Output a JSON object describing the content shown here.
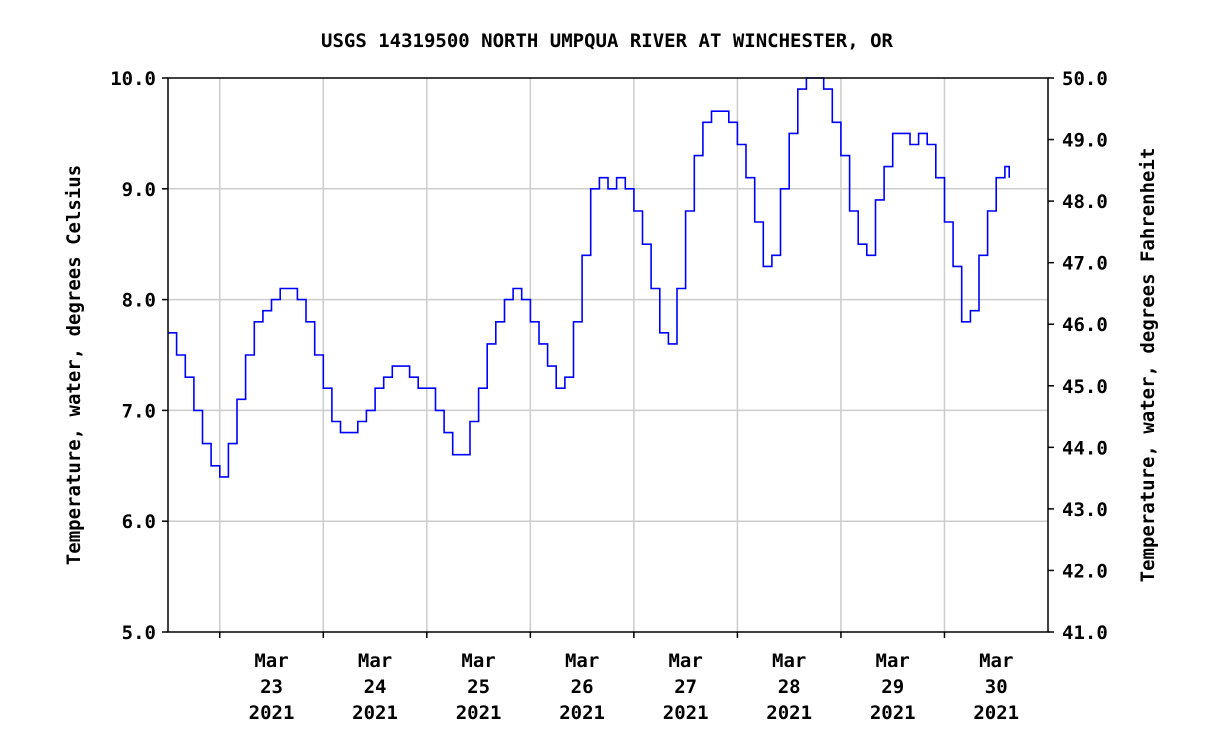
{
  "chart_data": {
    "type": "line",
    "title": "USGS 14319500 NORTH UMPQUA RIVER AT WINCHESTER, OR",
    "ylabel": "Temperature, water, degrees Celsius",
    "y2label": "Temperature, water, degrees Fahrenheit",
    "ylim": [
      5.0,
      10.0
    ],
    "y2lim": [
      41.0,
      50.0
    ],
    "yticks": [
      "10.0",
      "9.0",
      "8.0",
      "7.0",
      "6.0",
      "5.0"
    ],
    "y2ticks": [
      "50.0",
      "49.0",
      "48.0",
      "47.0",
      "46.0",
      "45.0",
      "44.0",
      "43.0",
      "42.0",
      "41.0"
    ],
    "xlim": [
      "2021-03-22T12:00",
      "2021-03-30T24:00"
    ],
    "xticks": [
      {
        "month": "Mar",
        "day": "23",
        "year": "2021"
      },
      {
        "month": "Mar",
        "day": "24",
        "year": "2021"
      },
      {
        "month": "Mar",
        "day": "25",
        "year": "2021"
      },
      {
        "month": "Mar",
        "day": "26",
        "year": "2021"
      },
      {
        "month": "Mar",
        "day": "27",
        "year": "2021"
      },
      {
        "month": "Mar",
        "day": "28",
        "year": "2021"
      },
      {
        "month": "Mar",
        "day": "29",
        "year": "2021"
      },
      {
        "month": "Mar",
        "day": "30",
        "year": "2021"
      }
    ],
    "grid": true,
    "line_color": "#0000ff",
    "series": [
      {
        "points": [
          [
            "2021-03-22T12:00",
            7.7
          ],
          [
            "2021-03-22T14:00",
            7.5
          ],
          [
            "2021-03-22T16:00",
            7.3
          ],
          [
            "2021-03-22T18:00",
            7.0
          ],
          [
            "2021-03-22T20:00",
            6.7
          ],
          [
            "2021-03-22T22:00",
            6.5
          ],
          [
            "2021-03-23T00:00",
            6.4
          ],
          [
            "2021-03-23T02:00",
            6.7
          ],
          [
            "2021-03-23T04:00",
            7.1
          ],
          [
            "2021-03-23T06:00",
            7.5
          ],
          [
            "2021-03-23T08:00",
            7.8
          ],
          [
            "2021-03-23T10:00",
            7.9
          ],
          [
            "2021-03-23T12:00",
            8.0
          ],
          [
            "2021-03-23T14:00",
            8.1
          ],
          [
            "2021-03-23T16:00",
            8.1
          ],
          [
            "2021-03-23T18:00",
            8.0
          ],
          [
            "2021-03-23T20:00",
            7.8
          ],
          [
            "2021-03-23T22:00",
            7.5
          ],
          [
            "2021-03-24T00:00",
            7.2
          ],
          [
            "2021-03-24T02:00",
            6.9
          ],
          [
            "2021-03-24T04:00",
            6.8
          ],
          [
            "2021-03-24T06:00",
            6.8
          ],
          [
            "2021-03-24T08:00",
            6.9
          ],
          [
            "2021-03-24T10:00",
            7.0
          ],
          [
            "2021-03-24T12:00",
            7.2
          ],
          [
            "2021-03-24T14:00",
            7.3
          ],
          [
            "2021-03-24T16:00",
            7.4
          ],
          [
            "2021-03-24T18:00",
            7.4
          ],
          [
            "2021-03-24T20:00",
            7.3
          ],
          [
            "2021-03-24T22:00",
            7.2
          ],
          [
            "2021-03-25T00:00",
            7.2
          ],
          [
            "2021-03-25T02:00",
            7.0
          ],
          [
            "2021-03-25T04:00",
            6.8
          ],
          [
            "2021-03-25T06:00",
            6.6
          ],
          [
            "2021-03-25T08:00",
            6.6
          ],
          [
            "2021-03-25T10:00",
            6.9
          ],
          [
            "2021-03-25T12:00",
            7.2
          ],
          [
            "2021-03-25T14:00",
            7.6
          ],
          [
            "2021-03-25T16:00",
            7.8
          ],
          [
            "2021-03-25T18:00",
            8.0
          ],
          [
            "2021-03-25T20:00",
            8.1
          ],
          [
            "2021-03-25T22:00",
            8.0
          ],
          [
            "2021-03-26T00:00",
            7.8
          ],
          [
            "2021-03-26T02:00",
            7.6
          ],
          [
            "2021-03-26T04:00",
            7.4
          ],
          [
            "2021-03-26T06:00",
            7.2
          ],
          [
            "2021-03-26T08:00",
            7.3
          ],
          [
            "2021-03-26T10:00",
            7.8
          ],
          [
            "2021-03-26T12:00",
            8.4
          ],
          [
            "2021-03-26T14:00",
            9.0
          ],
          [
            "2021-03-26T16:00",
            9.1
          ],
          [
            "2021-03-26T18:00",
            9.0
          ],
          [
            "2021-03-26T20:00",
            9.1
          ],
          [
            "2021-03-26T22:00",
            9.0
          ],
          [
            "2021-03-27T00:00",
            8.8
          ],
          [
            "2021-03-27T02:00",
            8.5
          ],
          [
            "2021-03-27T04:00",
            8.1
          ],
          [
            "2021-03-27T06:00",
            7.7
          ],
          [
            "2021-03-27T08:00",
            7.6
          ],
          [
            "2021-03-27T10:00",
            8.1
          ],
          [
            "2021-03-27T12:00",
            8.8
          ],
          [
            "2021-03-27T14:00",
            9.3
          ],
          [
            "2021-03-27T16:00",
            9.6
          ],
          [
            "2021-03-27T18:00",
            9.7
          ],
          [
            "2021-03-27T20:00",
            9.7
          ],
          [
            "2021-03-27T22:00",
            9.6
          ],
          [
            "2021-03-28T00:00",
            9.4
          ],
          [
            "2021-03-28T02:00",
            9.1
          ],
          [
            "2021-03-28T04:00",
            8.7
          ],
          [
            "2021-03-28T06:00",
            8.3
          ],
          [
            "2021-03-28T08:00",
            8.4
          ],
          [
            "2021-03-28T10:00",
            9.0
          ],
          [
            "2021-03-28T12:00",
            9.5
          ],
          [
            "2021-03-28T14:00",
            9.9
          ],
          [
            "2021-03-28T16:00",
            10.0
          ],
          [
            "2021-03-28T18:00",
            10.0
          ],
          [
            "2021-03-28T20:00",
            9.9
          ],
          [
            "2021-03-28T22:00",
            9.6
          ],
          [
            "2021-03-29T00:00",
            9.3
          ],
          [
            "2021-03-29T02:00",
            8.8
          ],
          [
            "2021-03-29T04:00",
            8.5
          ],
          [
            "2021-03-29T06:00",
            8.4
          ],
          [
            "2021-03-29T08:00",
            8.9
          ],
          [
            "2021-03-29T10:00",
            9.2
          ],
          [
            "2021-03-29T12:00",
            9.5
          ],
          [
            "2021-03-29T14:00",
            9.5
          ],
          [
            "2021-03-29T16:00",
            9.4
          ],
          [
            "2021-03-29T18:00",
            9.5
          ],
          [
            "2021-03-29T20:00",
            9.4
          ],
          [
            "2021-03-29T22:00",
            9.1
          ],
          [
            "2021-03-30T00:00",
            8.7
          ],
          [
            "2021-03-30T02:00",
            8.3
          ],
          [
            "2021-03-30T04:00",
            7.8
          ],
          [
            "2021-03-30T06:00",
            7.9
          ],
          [
            "2021-03-30T08:00",
            8.4
          ],
          [
            "2021-03-30T10:00",
            8.8
          ],
          [
            "2021-03-30T12:00",
            9.1
          ],
          [
            "2021-03-30T14:00",
            9.2
          ],
          [
            "2021-03-30T15:00",
            9.1
          ]
        ]
      }
    ]
  }
}
